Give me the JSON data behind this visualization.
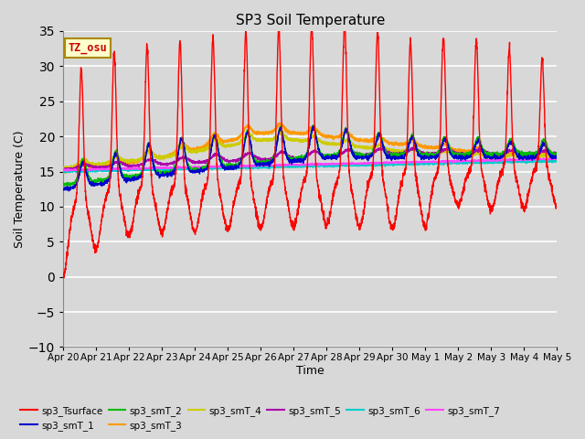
{
  "title": "SP3 Soil Temperature",
  "xlabel": "Time",
  "ylabel": "Soil Temperature (C)",
  "ylim": [
    -10,
    35
  ],
  "xlim": [
    0,
    15
  ],
  "background_color": "#d8d8d8",
  "plot_bg_color": "#d8d8d8",
  "grid_color": "#ffffff",
  "tz_label": "TZ_osu",
  "tz_bg": "#ffffcc",
  "tz_border": "#aa8800",
  "tz_text_color": "#cc0000",
  "series_colors": {
    "sp3_Tsurface": "#ff0000",
    "sp3_smT_1": "#0000cc",
    "sp3_smT_2": "#00bb00",
    "sp3_smT_3": "#ff9900",
    "sp3_smT_4": "#cccc00",
    "sp3_smT_5": "#aa00aa",
    "sp3_smT_6": "#00cccc",
    "sp3_smT_7": "#ff44ff"
  },
  "x_tick_labels": [
    "Apr 20",
    "Apr 21",
    "Apr 22",
    "Apr 23",
    "Apr 24",
    "Apr 25",
    "Apr 26",
    "Apr 27",
    "Apr 28",
    "Apr 29",
    "Apr 30",
    "May 1",
    "May 2",
    "May 3",
    "May 4",
    "May 5"
  ],
  "x_tick_positions": [
    0,
    1,
    2,
    3,
    4,
    5,
    6,
    7,
    8,
    9,
    10,
    11,
    12,
    13,
    14,
    15
  ],
  "y_ticks": [
    -10,
    -5,
    0,
    5,
    10,
    15,
    20,
    25,
    30,
    35
  ]
}
